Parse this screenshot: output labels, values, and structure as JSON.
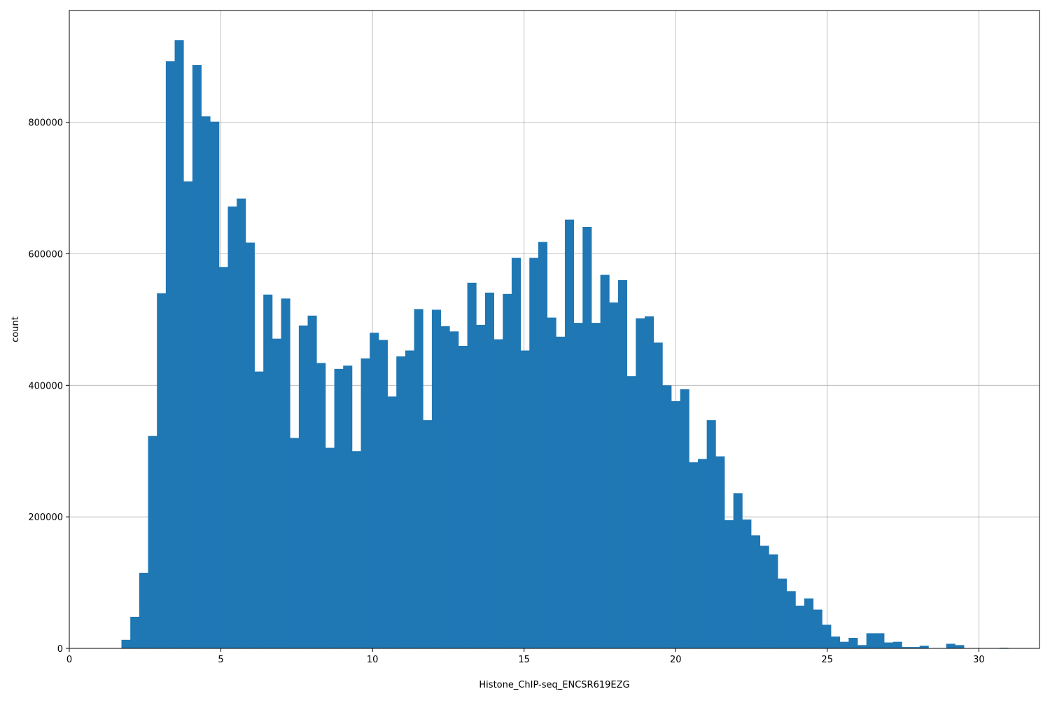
{
  "chart_data": {
    "type": "bar",
    "subtype": "histogram",
    "title": "",
    "xlabel": "Histone_ChIP-seq_ENCSR619EZG",
    "ylabel": "count",
    "xlim": [
      0,
      32
    ],
    "ylim": [
      0,
      970000
    ],
    "xticks": [
      0,
      5,
      10,
      15,
      20,
      25,
      30
    ],
    "xtick_labels": [
      "0",
      "5",
      "10",
      "15",
      "20",
      "25",
      "30"
    ],
    "yticks": [
      0,
      200000,
      400000,
      600000,
      800000
    ],
    "ytick_labels": [
      "0",
      "200000",
      "400000",
      "600000",
      "800000"
    ],
    "grid": true,
    "bar_color": "#1f77b4",
    "bin_start": 1.72,
    "bin_width": 0.2925,
    "values": [
      13000,
      48000,
      115000,
      323000,
      540000,
      893000,
      925000,
      710000,
      887000,
      809000,
      801000,
      580000,
      672000,
      684000,
      617000,
      421000,
      538000,
      471000,
      532000,
      320000,
      491000,
      506000,
      434000,
      305000,
      425000,
      430000,
      300000,
      441000,
      480000,
      469000,
      383000,
      444000,
      453000,
      516000,
      347000,
      515000,
      490000,
      482000,
      460000,
      556000,
      492000,
      541000,
      470000,
      539000,
      594000,
      453000,
      594000,
      618000,
      503000,
      474000,
      652000,
      495000,
      641000,
      495000,
      568000,
      526000,
      560000,
      414000,
      502000,
      505000,
      465000,
      400000,
      376000,
      394000,
      283000,
      288000,
      347000,
      292000,
      195000,
      236000,
      196000,
      172000,
      156000,
      143000,
      106000,
      87000,
      65000,
      76000,
      59000,
      36000,
      18000,
      10000,
      16000,
      5000,
      23000,
      23000,
      9000,
      10000,
      2000,
      2000,
      4000,
      0,
      0,
      7000,
      5000,
      0,
      0,
      0,
      0,
      1000,
      0
    ]
  }
}
